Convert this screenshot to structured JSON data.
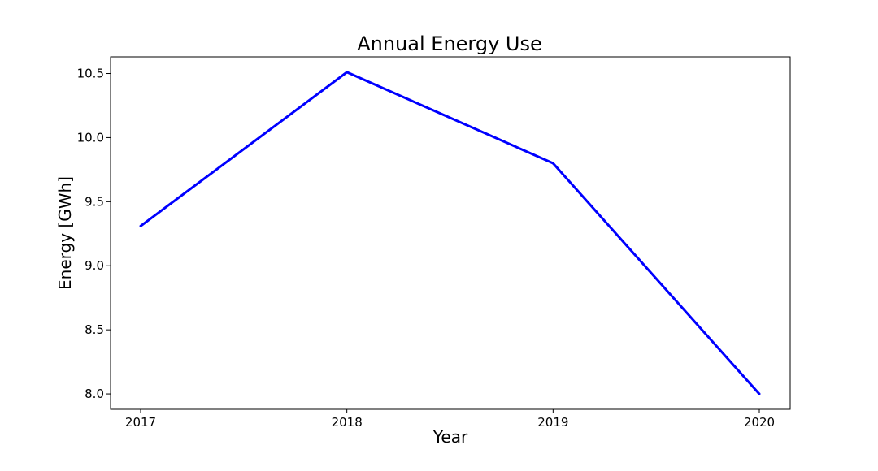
{
  "chart_data": {
    "type": "line",
    "title": "Annual Energy Use",
    "xlabel": "Year",
    "ylabel": "Energy [GWh]",
    "x": [
      "2017",
      "2018",
      "2019",
      "2020"
    ],
    "series": [
      {
        "values": [
          9.31,
          10.51,
          9.8,
          8.0
        ],
        "color": "#0000ff"
      }
    ],
    "ylim": [
      7.88,
      10.63
    ],
    "yticks": [
      8.0,
      8.5,
      9.0,
      9.5,
      10.0,
      10.5
    ],
    "ytick_labels": [
      "8.0",
      "8.5",
      "9.0",
      "9.5",
      "10.0",
      "10.5"
    ],
    "xtick_labels": [
      "2017",
      "2018",
      "2019",
      "2020"
    ],
    "grid": false,
    "legend": "none"
  }
}
